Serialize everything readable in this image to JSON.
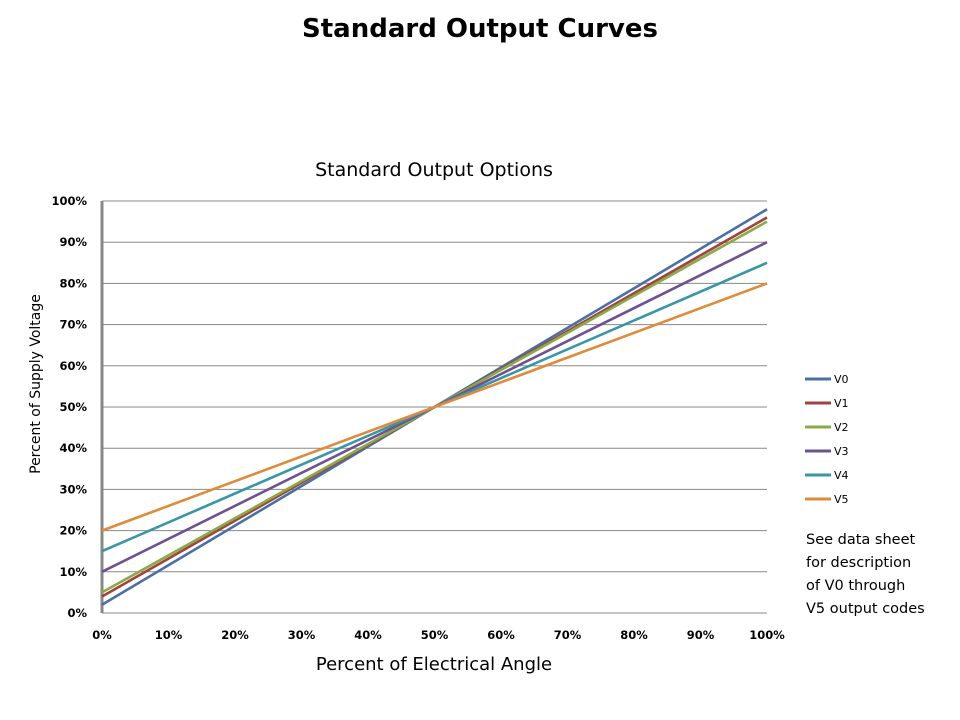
{
  "slide": {
    "title": "Standard Output Curves"
  },
  "note": {
    "lines": [
      "See data sheet",
      "for description",
      "of V0 through",
      "V5 output codes"
    ]
  },
  "colors": {
    "gridline": "#888888",
    "axis": "#888888",
    "background": "#ffffff"
  },
  "chart_data": {
    "type": "line",
    "title": "Standard Output Options",
    "xlabel": "Percent of Electrical Angle",
    "ylabel": "Percent of Supply Voltage",
    "xlim": [
      0,
      100
    ],
    "ylim": [
      0,
      100
    ],
    "x_ticks": [
      0,
      10,
      20,
      30,
      40,
      50,
      60,
      70,
      80,
      90,
      100
    ],
    "y_ticks": [
      0,
      10,
      20,
      30,
      40,
      50,
      60,
      70,
      80,
      90,
      100
    ],
    "x_tick_labels": [
      "0%",
      "10%",
      "20%",
      "30%",
      "40%",
      "50%",
      "60%",
      "70%",
      "80%",
      "90%",
      "100%"
    ],
    "y_tick_labels": [
      "0%",
      "10%",
      "20%",
      "30%",
      "40%",
      "50%",
      "60%",
      "70%",
      "80%",
      "90%",
      "100%"
    ],
    "grid": "horizontal",
    "legend_position": "right",
    "series": [
      {
        "name": "V0",
        "color": "#4a6fa5",
        "x": [
          0,
          100
        ],
        "y": [
          2,
          98
        ]
      },
      {
        "name": "V1",
        "color": "#a0433e",
        "x": [
          0,
          100
        ],
        "y": [
          4,
          96
        ]
      },
      {
        "name": "V2",
        "color": "#8aaa4a",
        "x": [
          0,
          100
        ],
        "y": [
          5,
          95
        ]
      },
      {
        "name": "V3",
        "color": "#6d5191",
        "x": [
          0,
          100
        ],
        "y": [
          10,
          90
        ]
      },
      {
        "name": "V4",
        "color": "#3a95a6",
        "x": [
          0,
          100
        ],
        "y": [
          15,
          85
        ]
      },
      {
        "name": "V5",
        "color": "#e08a3c",
        "x": [
          0,
          100
        ],
        "y": [
          20,
          80
        ]
      }
    ]
  }
}
